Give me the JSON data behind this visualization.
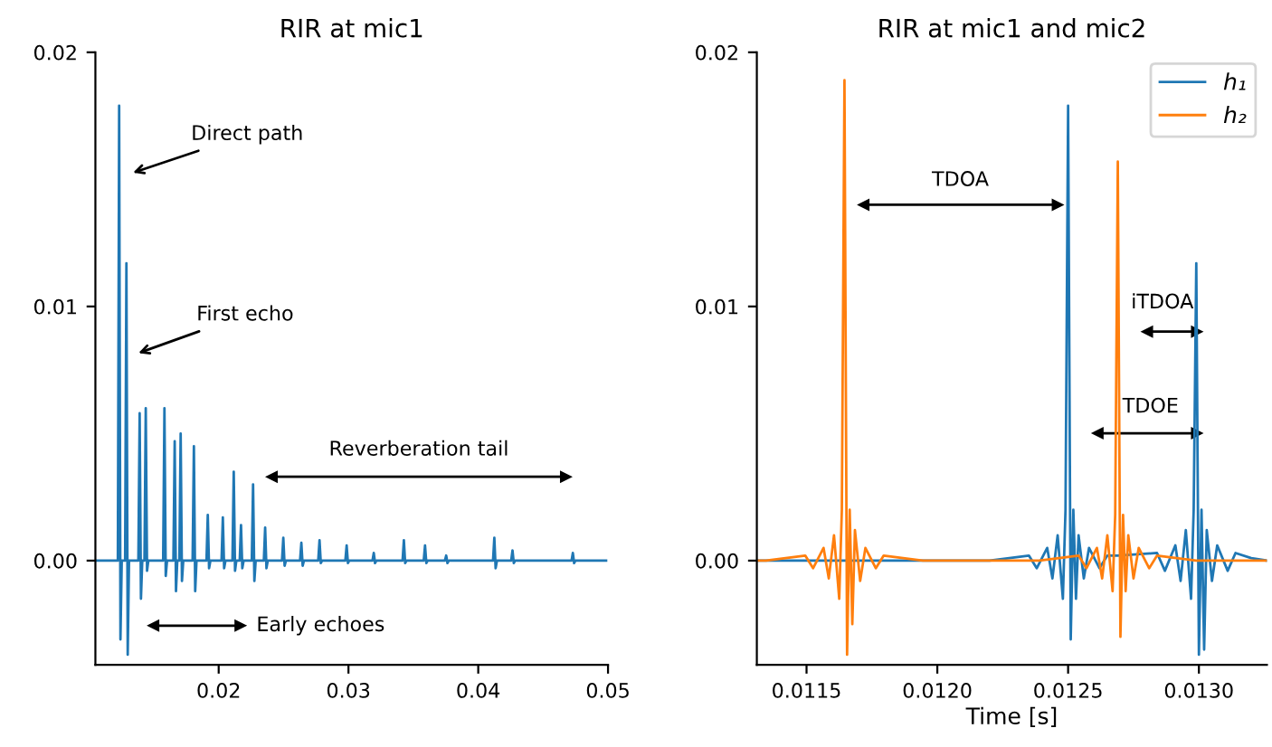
{
  "chart_data": [
    {
      "type": "line",
      "title": "RIR at mic1",
      "x": [
        0.0105,
        0.01223,
        0.01233,
        0.01243,
        0.01253,
        0.01279,
        0.01289,
        0.01299,
        0.01309,
        0.01381,
        0.01391,
        0.01401,
        0.01411,
        0.01428,
        0.01438,
        0.01448,
        0.01458,
        0.01572,
        0.01582,
        0.01592,
        0.01602,
        0.01651,
        0.01661,
        0.01671,
        0.01681,
        0.01697,
        0.01707,
        0.01717,
        0.01727,
        0.01799,
        0.01809,
        0.01819,
        0.01829,
        0.01906,
        0.01916,
        0.01926,
        0.01936,
        0.02022,
        0.02032,
        0.02042,
        0.02052,
        0.02106,
        0.02116,
        0.02126,
        0.02136,
        0.02162,
        0.02172,
        0.02182,
        0.02192,
        0.02255,
        0.02265,
        0.02275,
        0.02285,
        0.02348,
        0.02358,
        0.02368,
        0.02378,
        0.02488,
        0.02498,
        0.02508,
        0.02518,
        0.02627,
        0.02637,
        0.02647,
        0.02657,
        0.02767,
        0.02777,
        0.02787,
        0.02797,
        0.02976,
        0.02986,
        0.02996,
        0.03006,
        0.03185,
        0.03195,
        0.03205,
        0.03215,
        0.03417,
        0.03427,
        0.03437,
        0.03447,
        0.0358,
        0.0359,
        0.036,
        0.0361,
        0.03743,
        0.03753,
        0.03763,
        0.03773,
        0.04114,
        0.04124,
        0.04134,
        0.04144,
        0.04254,
        0.04264,
        0.04274,
        0.04284,
        0.04719,
        0.04729,
        0.04739,
        0.04749,
        0.04985
      ],
      "series": [
        {
          "color": "#1f77b4",
          "values": [
            0,
            0,
            0.0179,
            -0.0031,
            0,
            0,
            0.0117,
            -0.0037,
            0,
            0,
            0.0058,
            -0.0015,
            0,
            0,
            0.006,
            -0.0004,
            0,
            0,
            0.006,
            -0.0006,
            0,
            0,
            0.0047,
            -0.0012,
            0,
            0,
            0.005,
            -0.0008,
            0,
            0,
            0.0045,
            -0.0012,
            0,
            0,
            0.0018,
            -0.0003,
            0,
            0,
            0.0017,
            -0.0003,
            0,
            0,
            0.0035,
            -0.0004,
            0,
            0,
            0.0014,
            -0.0003,
            0,
            0,
            0.003,
            -0.0008,
            0,
            0,
            0.0013,
            -0.0003,
            0,
            0,
            0.0009,
            -0.0002,
            0,
            0,
            0.0007,
            -0.0002,
            0,
            0,
            0.0008,
            -0.0001,
            0,
            0,
            0.0006,
            -0.0001,
            0,
            0,
            0.0003,
            -0.0001,
            0,
            0,
            0.0008,
            -0.0001,
            0,
            0,
            0.0006,
            -0.0001,
            0,
            0,
            0.0002,
            -0.0001,
            0,
            0,
            0.0009,
            -0.0003,
            0,
            0,
            0.0004,
            -0.0001,
            0,
            0,
            0.0003,
            -0.0001,
            0,
            0
          ]
        }
      ],
      "xlim": [
        0.0105,
        0.05
      ],
      "xticks": [
        {
          "value": 0.02,
          "label": "0.02"
        },
        {
          "value": 0.03,
          "label": "0.03"
        },
        {
          "value": 0.04,
          "label": "0.04"
        },
        {
          "value": 0.05,
          "label": "0.05"
        }
      ],
      "ylim": [
        -0.0041,
        0.02
      ],
      "yticks": [
        {
          "value": 0,
          "label": "0.00"
        },
        {
          "value": 0.01,
          "label": "0.01"
        },
        {
          "value": 0.02,
          "label": "0.02"
        }
      ],
      "grid": false,
      "legend": false,
      "annotations": [
        {
          "text": "Direct path",
          "x": 0.01303,
          "y": 0.0152
        },
        {
          "text": "First echo",
          "x": 0.01345,
          "y": 0.0081
        },
        "Reverberation tail",
        "Early echoes"
      ]
    },
    {
      "type": "line",
      "title": "RIR at mic1 and mic2",
      "xlabel": "Time [s]",
      "series": [
        {
          "name": "h₁",
          "color": "#1f77b4",
          "x": [
            0.01131,
            0.0122,
            0.01235,
            0.01238,
            0.01242,
            0.01244,
            0.01246,
            0.01248,
            0.01249,
            0.0125,
            0.01251,
            0.01252,
            0.01253,
            0.01254,
            0.01256,
            0.01258,
            0.01262,
            0.01265,
            0.01269,
            0.01284,
            0.01287,
            0.01291,
            0.01293,
            0.01295,
            0.01297,
            0.01298,
            0.01299,
            0.013,
            0.01301,
            0.01302,
            0.01303,
            0.01305,
            0.01307,
            0.01311,
            0.01314,
            0.0132,
            0.01326
          ],
          "values": [
            0,
            0,
            0.0002,
            -0.0003,
            0.0005,
            -0.0007,
            0.001,
            -0.0015,
            0.002,
            0.0179,
            -0.0031,
            0.002,
            -0.0015,
            0.001,
            -0.0007,
            0.0005,
            -0.0003,
            0.0002,
            0.0002,
            0.0003,
            -0.0004,
            0.0006,
            -0.0008,
            0.0012,
            -0.0015,
            0.002,
            0.0117,
            -0.0037,
            0.002,
            -0.0035,
            0.0012,
            -0.0008,
            0.0006,
            -0.0004,
            0.0003,
            0.0001,
            0
          ]
        },
        {
          "name": "h₂",
          "color": "#ff7f0e",
          "x": [
            0.01131,
            0.011345,
            0.011495,
            0.011525,
            0.011565,
            0.011585,
            0.011605,
            0.011625,
            0.011635,
            0.011645,
            0.011655,
            0.011665,
            0.011675,
            0.011685,
            0.011705,
            0.011725,
            0.011765,
            0.011795,
            0.011945,
            0.01239,
            0.01254,
            0.01257,
            0.01261,
            0.01263,
            0.01265,
            0.01267,
            0.01268,
            0.01269,
            0.0127,
            0.01271,
            0.01272,
            0.01273,
            0.01275,
            0.01277,
            0.01281,
            0.01284,
            0.01299,
            0.01326
          ],
          "values": [
            0,
            0,
            0.0002,
            -0.0003,
            0.0005,
            -0.0007,
            0.001,
            -0.0015,
            0.002,
            0.0189,
            -0.0037,
            0.002,
            -0.0025,
            0.0012,
            -0.0008,
            0.0005,
            -0.0003,
            0.0002,
            0,
            0,
            0.0002,
            -0.0003,
            0.0005,
            -0.0007,
            0.001,
            -0.0012,
            0.0018,
            0.0157,
            -0.003,
            0.0018,
            -0.0012,
            0.001,
            -0.0007,
            0.0005,
            -0.0003,
            0.0002,
            0,
            0
          ]
        }
      ],
      "xlim": [
        0.01131,
        0.01326
      ],
      "xticks": [
        0.0115,
        {
          "value": 0.012,
          "label": "0.0120"
        },
        0.0125,
        {
          "value": 0.013,
          "label": "0.0130"
        }
      ],
      "ylim": [
        -0.0041,
        0.02
      ],
      "yticks": [
        {
          "value": 0,
          "label": "0.00"
        },
        0.01,
        0.02
      ],
      "grid": false,
      "legend": "top right",
      "annotations": [
        "TDOA",
        "iTDOA",
        "TDOE"
      ]
    }
  ]
}
